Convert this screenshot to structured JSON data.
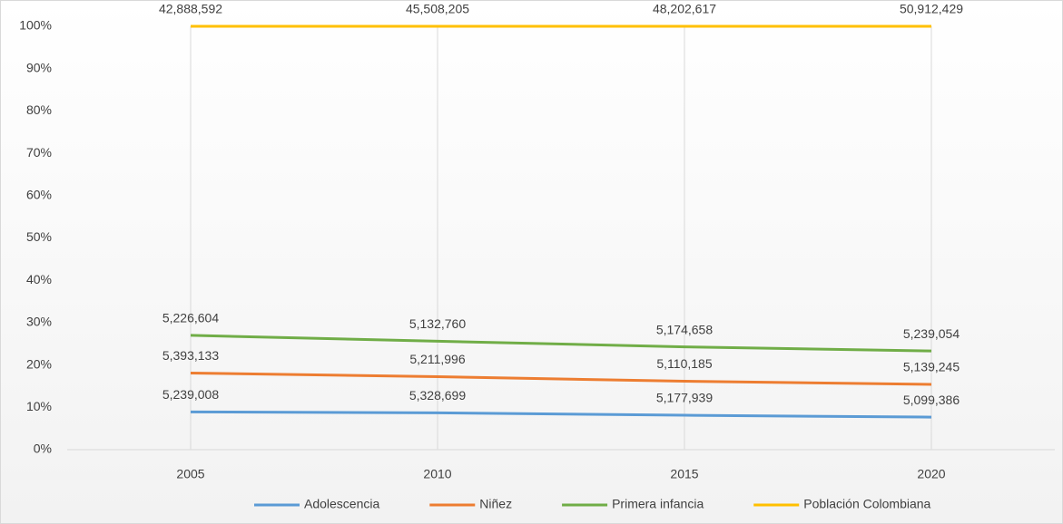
{
  "chart_data": {
    "type": "line",
    "stacked": "percent",
    "categories": [
      "2005",
      "2010",
      "2015",
      "2020"
    ],
    "series": [
      {
        "name": "Adolescencia",
        "color": "#5b9bd5",
        "values": [
          5239008,
          5328699,
          5177939,
          5099386
        ],
        "value_labels": [
          "5,239,008",
          "5,328,699",
          "5,177,939",
          "5,099,386"
        ]
      },
      {
        "name": "Niñez",
        "color": "#ed7d31",
        "values": [
          5393133,
          5211996,
          5110185,
          5139245
        ],
        "value_labels": [
          "5,393,133",
          "5,211,996",
          "5,110,185",
          "5,139,245"
        ]
      },
      {
        "name": "Primera infancia",
        "color": "#70ad47",
        "values": [
          5226604,
          5132760,
          5174658,
          5239054
        ],
        "value_labels": [
          "5,226,604",
          "5,132,760",
          "5,174,658",
          "5,239,054"
        ]
      },
      {
        "name": "Población Colombiana",
        "color": "#ffc000",
        "values": [
          42888592,
          45508205,
          48202617,
          50912429
        ],
        "value_labels": [
          "42,888,592",
          "45,508,205",
          "48,202,617",
          "50,912,429"
        ]
      }
    ],
    "ylim": [
      0,
      100
    ],
    "yticks": [
      {
        "value": 0,
        "label": "0%"
      },
      {
        "value": 10,
        "label": "10%"
      },
      {
        "value": 20,
        "label": "20%"
      },
      {
        "value": 30,
        "label": "30%"
      },
      {
        "value": 40,
        "label": "40%"
      },
      {
        "value": 50,
        "label": "50%"
      },
      {
        "value": 60,
        "label": "60%"
      },
      {
        "value": 70,
        "label": "70%"
      },
      {
        "value": 80,
        "label": "80%"
      },
      {
        "value": 90,
        "label": "90%"
      },
      {
        "value": 100,
        "label": "100%"
      }
    ],
    "grid": "x",
    "legend": "bottom"
  }
}
